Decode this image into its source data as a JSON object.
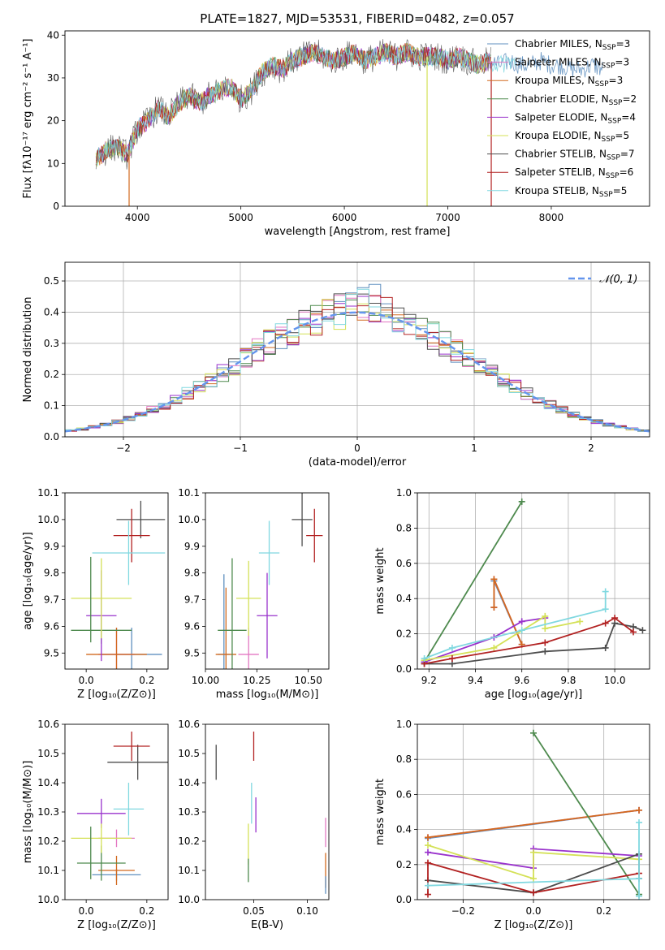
{
  "colors": {
    "chabrier_miles": "#5f8fbf",
    "salpeter_miles": "#e377c2",
    "kroupa_miles": "#d2691e",
    "chabrier_elodie": "#4e8a4e",
    "salpeter_elodie": "#9932cc",
    "kroupa_elodie": "#d4e157",
    "chabrier_stelib": "#4d4d4d",
    "salpeter_stelib": "#b22222",
    "kroupa_stelib": "#80d8e0",
    "normal_line": "#6495ed",
    "grid": "#b0b0b0"
  },
  "chart_data": [
    {
      "id": "spectrum",
      "type": "line",
      "title": "PLATE=1827, MJD=53531, FIBERID=0482, z=0.057",
      "xlabel": "wavelength [Angstrom, rest frame]",
      "ylabel": "Flux [fλ10⁻¹⁷ erg cm⁻² s⁻¹ A⁻¹]",
      "xlim": [
        3300,
        8950
      ],
      "ylim": [
        0,
        41
      ],
      "xticks": [
        4000,
        5000,
        6000,
        7000,
        8000
      ],
      "yticks": [
        0,
        10,
        20,
        30,
        40
      ],
      "grid": false,
      "legend_position": "right",
      "legend": [
        {
          "label": "Chabrier MILES, N",
          "sub": "SSP",
          "val": "=3",
          "color": "chabrier_miles"
        },
        {
          "label": "Salpeter MILES, N",
          "sub": "SSP",
          "val": "=3",
          "color": "salpeter_miles"
        },
        {
          "label": "Kroupa MILES, N",
          "sub": "SSP",
          "val": "=3",
          "color": "kroupa_miles"
        },
        {
          "label": "Chabrier ELODIE, N",
          "sub": "SSP",
          "val": "=2",
          "color": "chabrier_elodie"
        },
        {
          "label": "Salpeter ELODIE, N",
          "sub": "SSP",
          "val": "=4",
          "color": "salpeter_elodie"
        },
        {
          "label": "Kroupa ELODIE, N",
          "sub": "SSP",
          "val": "=5",
          "color": "kroupa_elodie"
        },
        {
          "label": "Chabrier STELIB, N",
          "sub": "SSP",
          "val": "=7",
          "color": "chabrier_stelib"
        },
        {
          "label": "Salpeter STELIB, N",
          "sub": "SSP",
          "val": "=6",
          "color": "salpeter_stelib"
        },
        {
          "label": "Kroupa STELIB, N",
          "sub": "SSP",
          "val": "=5",
          "color": "kroupa_stelib"
        }
      ],
      "envelope": {
        "x": [
          3600,
          3700,
          3800,
          3900,
          4000,
          4100,
          4200,
          4300,
          4400,
          4500,
          4600,
          4700,
          4800,
          4900,
          5000,
          5100,
          5200,
          5300,
          5400,
          5500,
          5600,
          5700,
          5800,
          5900,
          6000,
          6100,
          6200,
          6300,
          6400,
          6500,
          6600,
          6700,
          6800,
          6900,
          7000,
          7100,
          7200,
          7300,
          7400,
          7500,
          7600,
          7700,
          7800,
          7900,
          8000,
          8100,
          8200,
          8300,
          8400,
          8500
        ],
        "y": [
          11,
          13,
          14,
          12,
          18,
          20,
          23,
          21,
          24,
          26,
          24,
          26,
          27,
          28,
          25,
          27,
          31,
          33,
          32,
          34,
          35,
          36,
          35,
          34,
          35,
          36,
          34,
          35,
          36,
          35,
          36,
          35,
          35,
          35,
          34,
          35,
          34,
          33,
          34,
          33,
          34,
          33,
          33,
          34,
          33,
          33,
          32,
          32,
          33,
          32
        ]
      },
      "spikes": [
        {
          "x": 3920,
          "y": 0,
          "color": "kroupa_miles"
        },
        {
          "x": 6800,
          "y": 0,
          "color": "kroupa_elodie"
        },
        {
          "x": 7420,
          "y": 0,
          "color": "salpeter_stelib"
        }
      ]
    },
    {
      "id": "residuals",
      "type": "histogram",
      "xlabel": "(data-model)/error",
      "ylabel": "Normed distribution",
      "xlim": [
        -2.5,
        2.5
      ],
      "ylim": [
        0,
        0.56
      ],
      "xticks": [
        -2,
        -1,
        0,
        1,
        2
      ],
      "yticks": [
        0.0,
        0.1,
        0.2,
        0.3,
        0.4,
        0.5
      ],
      "grid": true,
      "legend_position": "top-right",
      "legend": [
        {
          "label": "𝒩(0, 1)",
          "color": "normal_line",
          "dashed": true
        }
      ],
      "bin_width": 0.1,
      "series_colors": [
        "chabrier_miles",
        "salpeter_miles",
        "kroupa_miles",
        "chabrier_elodie",
        "salpeter_elodie",
        "kroupa_elodie",
        "chabrier_stelib",
        "salpeter_stelib",
        "kroupa_stelib"
      ],
      "gaussian": {
        "mean": 0,
        "sigma": 1
      }
    },
    {
      "id": "age_vs_z",
      "type": "errorbar",
      "xlabel": "Z [log₁₀(Z/Z⊙)]",
      "ylabel": "age  [log₁₀(age/yr)]",
      "xlim": [
        -0.07,
        0.27
      ],
      "ylim": [
        9.44,
        10.1
      ],
      "xticks": [
        0.0,
        0.2
      ],
      "xticklabels": [
        "0.0",
        "0.2"
      ],
      "yticks": [
        9.5,
        9.6,
        9.7,
        9.8,
        9.9,
        10.0,
        10.1
      ],
      "grid": false,
      "points": [
        {
          "x": 0.15,
          "xerr": 0.1,
          "y": 9.495,
          "yerr": 0.1,
          "color": "chabrier_miles"
        },
        {
          "x": 0.1,
          "xerr": 0.06,
          "y": 9.495,
          "yerr": 0.1,
          "color": "salpeter_miles"
        },
        {
          "x": 0.1,
          "xerr": 0.1,
          "y": 9.495,
          "yerr": 0.1,
          "color": "kroupa_miles"
        },
        {
          "x": 0.05,
          "xerr": 0.1,
          "y": 9.585,
          "yerr": 0.05,
          "color": "chabrier_elodie"
        },
        {
          "x": 0.05,
          "xerr": 0.05,
          "y": 9.64,
          "yerr": 0.17,
          "color": "salpeter_elodie"
        },
        {
          "x": 0.05,
          "xerr": 0.1,
          "y": 9.705,
          "yerr": 0.15,
          "color": "kroupa_elodie"
        },
        {
          "x": 0.18,
          "xerr": 0.08,
          "y": 10.0,
          "yerr": 0.07,
          "color": "chabrier_stelib"
        },
        {
          "x": 0.15,
          "xerr": 0.06,
          "y": 9.94,
          "yerr": 0.1,
          "color": "salpeter_stelib"
        },
        {
          "x": 0.14,
          "xerr": 0.12,
          "y": 9.875,
          "yerr": 0.12,
          "color": "kroupa_stelib"
        },
        {
          "x": 0.015,
          "xerr": 0,
          "y": 9.7,
          "yerr": 0.16,
          "color": "chabrier_elodie"
        }
      ]
    },
    {
      "id": "age_vs_mass",
      "type": "errorbar",
      "xlabel": "mass [log₁₀(M/M⊙)]",
      "ylabel": "",
      "xlim": [
        10.0,
        10.6
      ],
      "ylim": [
        9.44,
        10.1
      ],
      "xticks": [
        10.0,
        10.25,
        10.5
      ],
      "xticklabels": [
        "10.00",
        "10.25",
        "10.50"
      ],
      "yticks": [
        9.5,
        9.6,
        9.7,
        9.8,
        9.9,
        10.0,
        10.1
      ],
      "grid": false,
      "points": [
        {
          "x": 10.09,
          "xerr": 0.03,
          "y": 9.495,
          "yerr": 0.3,
          "color": "chabrier_miles"
        },
        {
          "x": 10.21,
          "xerr": 0.05,
          "y": 9.495,
          "yerr": 0.1,
          "color": "salpeter_miles"
        },
        {
          "x": 10.1,
          "xerr": 0.05,
          "y": 9.495,
          "yerr": 0.25,
          "color": "kroupa_miles"
        },
        {
          "x": 10.13,
          "xerr": 0.07,
          "y": 9.585,
          "yerr": 0.27,
          "color": "chabrier_elodie"
        },
        {
          "x": 10.3,
          "xerr": 0.05,
          "y": 9.64,
          "yerr": 0.16,
          "color": "salpeter_elodie"
        },
        {
          "x": 10.21,
          "xerr": 0.06,
          "y": 9.705,
          "yerr": 0.14,
          "color": "kroupa_elodie"
        },
        {
          "x": 10.47,
          "xerr": 0.05,
          "y": 10.0,
          "yerr": 0.1,
          "color": "chabrier_stelib"
        },
        {
          "x": 10.53,
          "xerr": 0.04,
          "y": 9.94,
          "yerr": 0.1,
          "color": "salpeter_stelib"
        },
        {
          "x": 10.31,
          "xerr": 0.05,
          "y": 9.875,
          "yerr": 0.12,
          "color": "kroupa_stelib"
        }
      ]
    },
    {
      "id": "mass_weight_vs_age",
      "type": "line",
      "xlabel": "age  [log₁₀(age/yr)]",
      "ylabel": "mass weight",
      "xlim": [
        9.15,
        10.15
      ],
      "ylim": [
        0,
        1.0
      ],
      "xticks": [
        9.2,
        9.4,
        9.6,
        9.8,
        10.0
      ],
      "xticklabels": [
        "9.2",
        "9.4",
        "9.6",
        "9.8",
        "10.0"
      ],
      "yticks": [
        0.0,
        0.2,
        0.4,
        0.6,
        0.8,
        1.0
      ],
      "grid": true,
      "series": [
        {
          "color": "chabrier_miles",
          "x": [
            9.48,
            9.48,
            9.6
          ],
          "y": [
            0.35,
            0.5,
            0.14
          ]
        },
        {
          "color": "salpeter_miles",
          "x": [
            9.48,
            9.48,
            9.6
          ],
          "y": [
            0.35,
            0.51,
            0.14
          ]
        },
        {
          "color": "kroupa_miles",
          "x": [
            9.48,
            9.48,
            9.6
          ],
          "y": [
            0.35,
            0.51,
            0.14
          ]
        },
        {
          "color": "chabrier_elodie",
          "x": [
            9.18,
            9.6
          ],
          "y": [
            0.04,
            0.95
          ]
        },
        {
          "color": "salpeter_elodie",
          "x": [
            9.18,
            9.48,
            9.6,
            9.7
          ],
          "y": [
            0.04,
            0.18,
            0.27,
            0.29
          ]
        },
        {
          "color": "kroupa_elodie",
          "x": [
            9.18,
            9.48,
            9.7,
            9.7,
            9.85
          ],
          "y": [
            0.05,
            0.12,
            0.3,
            0.23,
            0.27
          ]
        },
        {
          "color": "chabrier_stelib",
          "x": [
            9.18,
            9.3,
            9.7,
            9.96,
            10.0,
            10.08,
            10.12
          ],
          "y": [
            0.03,
            0.03,
            0.1,
            0.12,
            0.26,
            0.24,
            0.22
          ]
        },
        {
          "color": "salpeter_stelib",
          "x": [
            9.18,
            9.3,
            9.7,
            9.96,
            10.0,
            10.08
          ],
          "y": [
            0.03,
            0.06,
            0.15,
            0.26,
            0.29,
            0.21
          ]
        },
        {
          "color": "kroupa_stelib",
          "x": [
            9.18,
            9.3,
            9.6,
            9.96,
            9.96
          ],
          "y": [
            0.06,
            0.12,
            0.22,
            0.34,
            0.44
          ]
        }
      ]
    },
    {
      "id": "mass_vs_z",
      "type": "errorbar",
      "xlabel": "Z [log₁₀(Z/Z⊙)]",
      "ylabel": "mass [log₁₀(M/M⊙)]",
      "xlim": [
        -0.07,
        0.27
      ],
      "ylim": [
        10.0,
        10.6
      ],
      "xticks": [
        0.0,
        0.2
      ],
      "xticklabels": [
        "0.0",
        "0.2"
      ],
      "yticks": [
        10.0,
        10.1,
        10.2,
        10.3,
        10.4,
        10.5,
        10.6
      ],
      "grid": false,
      "points": [
        {
          "x": 0.1,
          "xerr": 0.08,
          "y": 10.085,
          "yerr": 0.02,
          "color": "chabrier_miles"
        },
        {
          "x": 0.1,
          "xerr": 0.06,
          "y": 10.21,
          "yerr": 0.03,
          "color": "salpeter_miles"
        },
        {
          "x": 0.1,
          "xerr": 0.06,
          "y": 10.1,
          "yerr": 0.05,
          "color": "kroupa_miles"
        },
        {
          "x": 0.05,
          "xerr": 0.08,
          "y": 10.125,
          "yerr": 0.06,
          "color": "chabrier_elodie"
        },
        {
          "x": 0.05,
          "xerr": 0.08,
          "y": 10.295,
          "yerr": 0.05,
          "color": "salpeter_elodie"
        },
        {
          "x": 0.05,
          "xerr": 0.1,
          "y": 10.21,
          "yerr": 0.05,
          "color": "kroupa_elodie"
        },
        {
          "x": 0.17,
          "xerr": 0.1,
          "y": 10.47,
          "yerr": 0.06,
          "color": "chabrier_stelib"
        },
        {
          "x": 0.15,
          "xerr": 0.06,
          "y": 10.525,
          "yerr": 0.05,
          "color": "salpeter_stelib"
        },
        {
          "x": 0.14,
          "xerr": 0.05,
          "y": 10.31,
          "yerr": 0.09,
          "color": "kroupa_stelib"
        },
        {
          "x": 0.015,
          "xerr": 0,
          "y": 10.16,
          "yerr": 0.09,
          "color": "chabrier_elodie"
        }
      ]
    },
    {
      "id": "mass_vs_ebv",
      "type": "errorbar",
      "xlabel": "E(B-V)",
      "ylabel": "",
      "xlim": [
        0.005,
        0.12
      ],
      "ylim": [
        10.0,
        10.6
      ],
      "xticks": [
        0.05,
        0.1
      ],
      "xticklabels": [
        "0.05",
        "0.10"
      ],
      "yticks": [
        10.0,
        10.1,
        10.2,
        10.3,
        10.4,
        10.5,
        10.6
      ],
      "grid": false,
      "points": [
        {
          "x": 0.015,
          "xerr": 0,
          "y": 10.47,
          "yerr": 0.06,
          "color": "chabrier_stelib"
        },
        {
          "x": 0.05,
          "xerr": 0,
          "y": 10.525,
          "yerr": 0.05,
          "color": "salpeter_stelib"
        },
        {
          "x": 0.048,
          "xerr": 0,
          "y": 10.33,
          "yerr": 0.07,
          "color": "kroupa_stelib"
        },
        {
          "x": 0.052,
          "xerr": 0,
          "y": 10.29,
          "yerr": 0.06,
          "color": "salpeter_elodie"
        },
        {
          "x": 0.045,
          "xerr": 0,
          "y": 10.19,
          "yerr": 0.07,
          "color": "kroupa_elodie"
        },
        {
          "x": 0.045,
          "xerr": 0,
          "y": 10.1,
          "yerr": 0.04,
          "color": "chabrier_elodie"
        },
        {
          "x": 0.117,
          "xerr": 0,
          "y": 10.23,
          "yerr": 0.05,
          "color": "salpeter_miles"
        },
        {
          "x": 0.117,
          "xerr": 0,
          "y": 10.1,
          "yerr": 0.06,
          "color": "kroupa_miles"
        },
        {
          "x": 0.117,
          "xerr": 0,
          "y": 10.05,
          "yerr": 0.03,
          "color": "chabrier_miles"
        }
      ]
    },
    {
      "id": "mass_weight_vs_z",
      "type": "line",
      "xlabel": "Z [log₁₀(Z/Z⊙)]",
      "ylabel": "mass weight",
      "xlim": [
        -0.33,
        0.33
      ],
      "ylim": [
        0,
        1.0
      ],
      "xticks": [
        -0.2,
        0.0,
        0.2
      ],
      "xticklabels": [
        "−0.2",
        "0.0",
        "0.2"
      ],
      "yticks": [
        0.0,
        0.2,
        0.4,
        0.6,
        0.8,
        1.0
      ],
      "grid": true,
      "series": [
        {
          "color": "chabrier_miles",
          "x": [
            -0.3,
            0.3
          ],
          "y": [
            0.35,
            0.51
          ]
        },
        {
          "color": "salpeter_miles",
          "x": [
            -0.3,
            0.3
          ],
          "y": [
            0.355,
            0.51
          ]
        },
        {
          "color": "kroupa_miles",
          "x": [
            -0.3,
            0.3
          ],
          "y": [
            0.355,
            0.51
          ]
        },
        {
          "color": "chabrier_elodie",
          "x": [
            0.0,
            0.3
          ],
          "y": [
            0.95,
            0.03
          ]
        },
        {
          "color": "salpeter_elodie",
          "x": [
            -0.3,
            0.0,
            0.0,
            0.3
          ],
          "y": [
            0.27,
            0.18,
            0.29,
            0.25
          ]
        },
        {
          "color": "kroupa_elodie",
          "x": [
            -0.3,
            0.0,
            0.0,
            0.3
          ],
          "y": [
            0.31,
            0.12,
            0.27,
            0.23
          ]
        },
        {
          "color": "chabrier_stelib",
          "x": [
            -0.3,
            0.0,
            0.3,
            0.3
          ],
          "y": [
            0.11,
            0.04,
            0.26,
            0.12
          ]
        },
        {
          "color": "salpeter_stelib",
          "x": [
            -0.3,
            -0.3,
            0.0,
            0.3
          ],
          "y": [
            0.03,
            0.21,
            0.04,
            0.15
          ]
        },
        {
          "color": "kroupa_stelib",
          "x": [
            -0.3,
            0.3,
            0.3,
            0.3
          ],
          "y": [
            0.08,
            0.12,
            0.44,
            0.02
          ]
        }
      ]
    }
  ]
}
